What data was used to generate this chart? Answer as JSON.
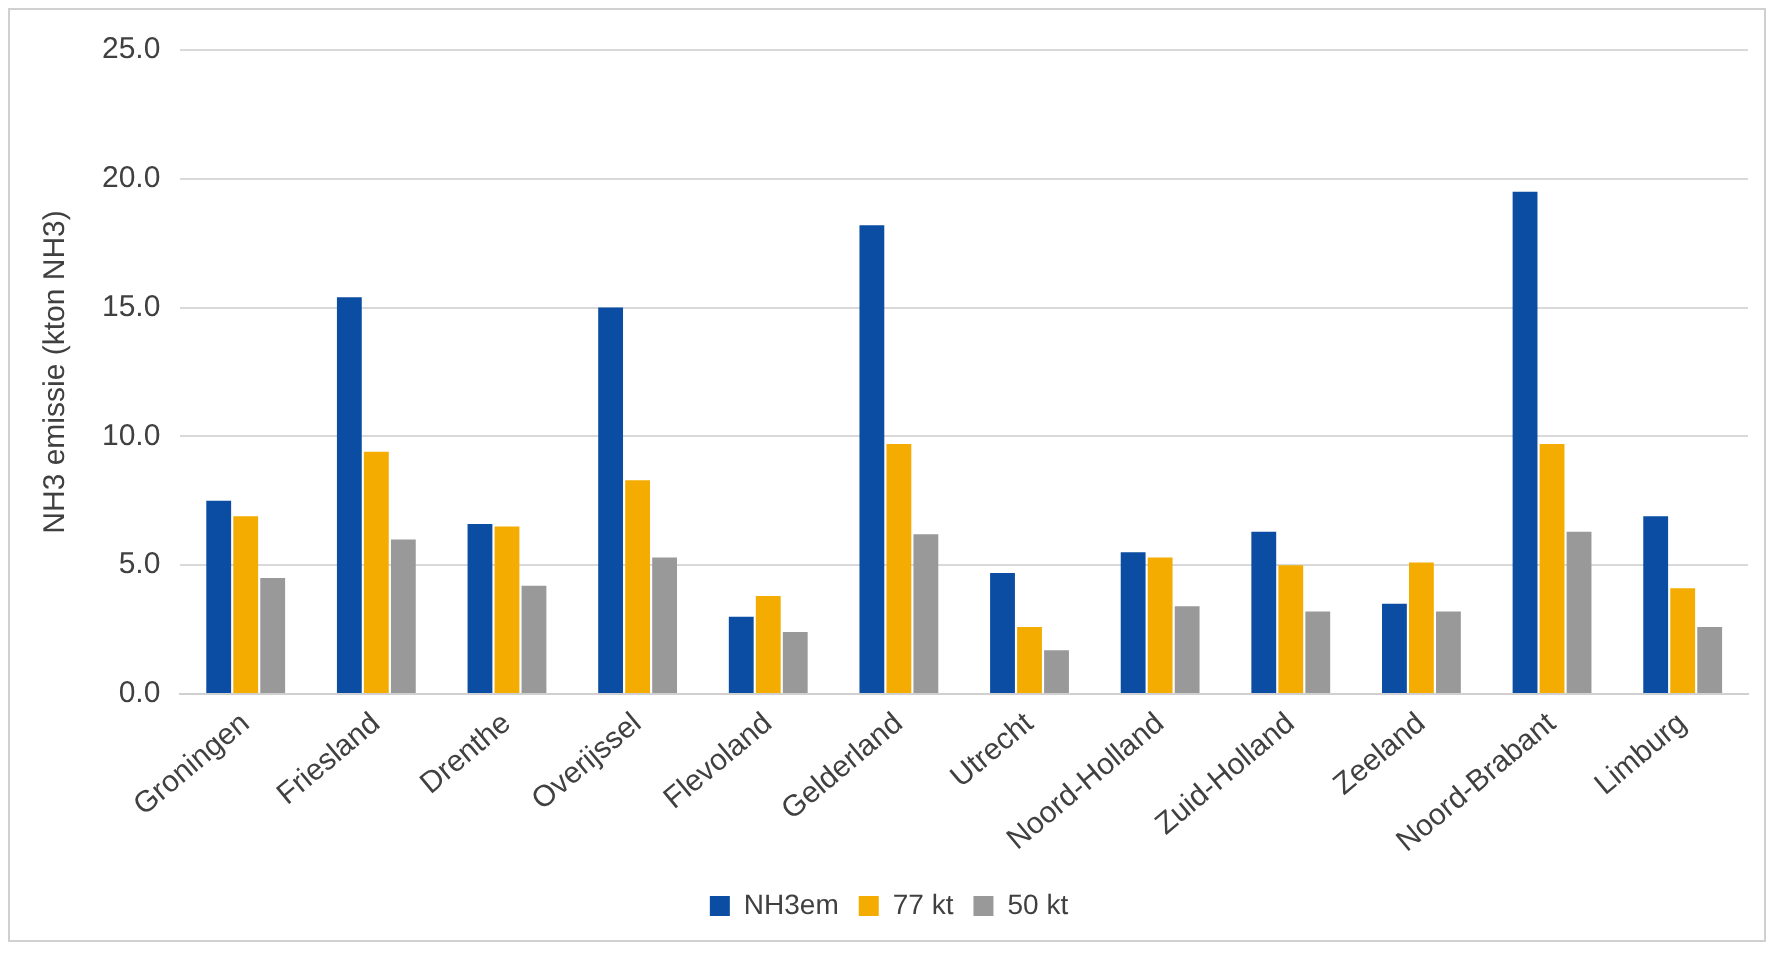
{
  "chart_data": {
    "type": "bar",
    "ylabel": "NH3 emissie (kton NH3)",
    "categories": [
      "Groningen",
      "Friesland",
      "Drenthe",
      "Overijssel",
      "Flevoland",
      "Gelderland",
      "Utrecht",
      "Noord-Holland",
      "Zuid-Holland",
      "Zeeland",
      "Noord-Brabant",
      "Limburg"
    ],
    "series": [
      {
        "name": "NH3em",
        "color": "#0a4da2",
        "values": [
          7.5,
          15.4,
          6.6,
          15.0,
          3.0,
          18.2,
          4.7,
          5.5,
          6.3,
          3.5,
          19.5,
          6.9
        ]
      },
      {
        "name": "77 kt",
        "color": "#f5ac00",
        "values": [
          6.9,
          9.4,
          6.5,
          8.3,
          3.8,
          9.7,
          2.6,
          5.3,
          5.0,
          5.1,
          9.7,
          4.1
        ]
      },
      {
        "name": "50 kt",
        "color": "#999999",
        "values": [
          4.5,
          6.0,
          4.2,
          5.3,
          2.4,
          6.2,
          1.7,
          3.4,
          3.2,
          3.2,
          6.3,
          2.6
        ]
      }
    ],
    "ylim": [
      0,
      25
    ],
    "yticks": [
      {
        "value": 0,
        "label": "0.0"
      },
      {
        "value": 5,
        "label": "5.0"
      },
      {
        "value": 10,
        "label": "10.0"
      },
      {
        "value": 15,
        "label": "15.0"
      },
      {
        "value": 20,
        "label": "20.0"
      },
      {
        "value": 25,
        "label": "25.0"
      }
    ],
    "grid": "y",
    "legend": "bottom"
  }
}
